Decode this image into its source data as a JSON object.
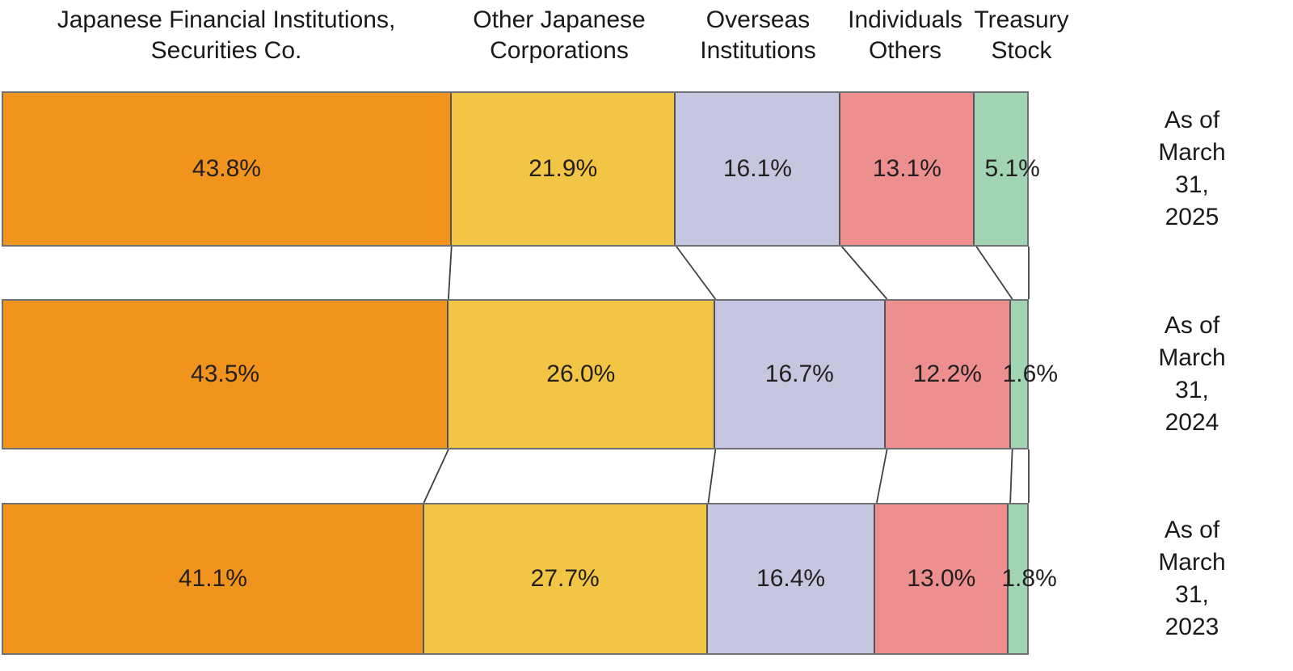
{
  "chart_data": {
    "type": "bar",
    "variant": "horizontal-stacked-100-percent",
    "title": "",
    "categories": [
      "Japanese Financial Institutions,\nSecurities Co.",
      "Other Japanese\nCorporations",
      "Overseas\nInstitutions",
      "Individuals\nOthers",
      "Treasury\nStock"
    ],
    "series_colors": [
      "#F0941E",
      "#F2C644",
      "#C7C6E1",
      "#ED8F8F",
      "#A1D4B2"
    ],
    "rows": [
      {
        "label": "As of March 31,\n2025",
        "values": [
          43.8,
          21.9,
          16.1,
          13.1,
          5.1
        ]
      },
      {
        "label": "As of March 31,\n2024",
        "values": [
          43.5,
          26.0,
          16.7,
          12.2,
          1.6
        ]
      },
      {
        "label": "As of March 31,\n2023",
        "values": [
          41.1,
          27.7,
          16.4,
          13.0,
          1.8
        ]
      }
    ],
    "value_suffix": "%",
    "xlim": [
      0,
      100
    ],
    "grid": false,
    "legend_position": "column-headers-top",
    "connector_lines_between_rows": true,
    "border_color": "#54555a",
    "connector_color": "#3f4043",
    "text_color": "#1a1a1a"
  }
}
